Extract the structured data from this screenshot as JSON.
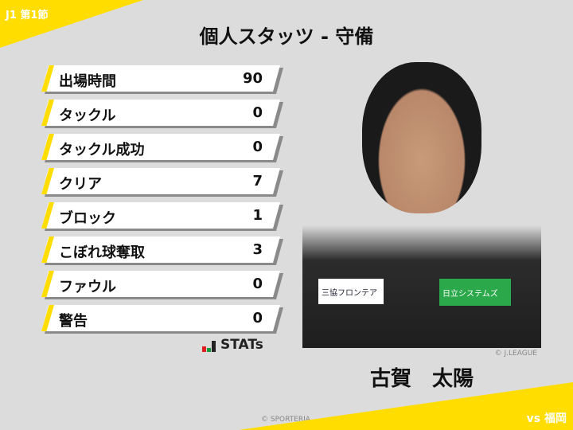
{
  "header": {
    "round": "J1 第1節",
    "title": "個人スタッツ - 守備",
    "opponent": "vs 福岡"
  },
  "accent_color": "#ffdd00",
  "stats": [
    {
      "label": "出場時間",
      "value": "90"
    },
    {
      "label": "タックル",
      "value": "0"
    },
    {
      "label": "タックル成功",
      "value": "0"
    },
    {
      "label": "クリア",
      "value": "7"
    },
    {
      "label": "ブロック",
      "value": "1"
    },
    {
      "label": "こぼれ球奪取",
      "value": "3"
    },
    {
      "label": "ファウル",
      "value": "0"
    },
    {
      "label": "警告",
      "value": "0"
    }
  ],
  "brand": {
    "logo_text": "STATs"
  },
  "player": {
    "name": "古賀　太陽",
    "photo_credit": "© J.LEAGUE",
    "sponsors": [
      "三協フロンテア",
      "日立システムズ"
    ]
  },
  "footer": {
    "copyright": "© SPORTERIA"
  }
}
